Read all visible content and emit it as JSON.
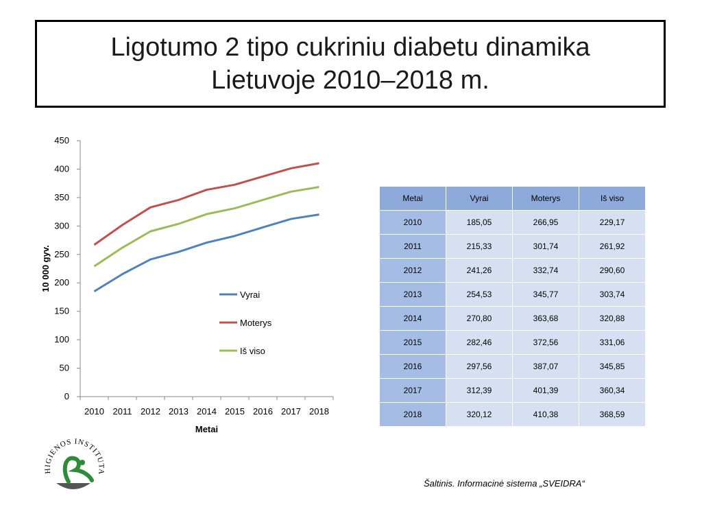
{
  "title": {
    "line1": "Ligotumo 2 tipo cukriniu diabetu dinamika",
    "line2": "Lietuvoje 2010–2018 m."
  },
  "chart_data": {
    "type": "line",
    "x": [
      "2010",
      "2011",
      "2012",
      "2013",
      "2014",
      "2015",
      "2016",
      "2017",
      "2018"
    ],
    "series": [
      {
        "name": "Vyrai",
        "color": "#4f81bd",
        "values": [
          185.05,
          215.33,
          241.26,
          254.53,
          270.8,
          282.46,
          297.56,
          312.39,
          320.12
        ]
      },
      {
        "name": "Moterys",
        "color": "#c0504d",
        "values": [
          266.95,
          301.74,
          332.74,
          345.77,
          363.68,
          372.56,
          387.07,
          401.39,
          410.38
        ]
      },
      {
        "name": "Iš viso",
        "color": "#9bbb59",
        "values": [
          229.17,
          261.92,
          290.6,
          303.74,
          320.88,
          331.06,
          345.85,
          360.34,
          368.59
        ]
      }
    ],
    "xlabel": "Metai",
    "ylabel": "10 000 gyv.",
    "ylim": [
      0,
      450
    ],
    "yticks": [
      "0",
      "50",
      "100",
      "150",
      "200",
      "250",
      "300",
      "350",
      "400",
      "450"
    ],
    "grid": false,
    "legend": "inside-right"
  },
  "table": {
    "headers": [
      "Metai",
      "Vyrai",
      "Moterys",
      "Iš viso"
    ],
    "rows": [
      [
        "2010",
        "185,05",
        "266,95",
        "229,17"
      ],
      [
        "2011",
        "215,33",
        "301,74",
        "261,92"
      ],
      [
        "2012",
        "241,26",
        "332,74",
        "290,60"
      ],
      [
        "2013",
        "254,53",
        "345,77",
        "303,74"
      ],
      [
        "2014",
        "270,80",
        "363,68",
        "320,88"
      ],
      [
        "2015",
        "282,46",
        "372,56",
        "331,06"
      ],
      [
        "2016",
        "297,56",
        "387,07",
        "345,85"
      ],
      [
        "2017",
        "312,39",
        "401,39",
        "360,34"
      ],
      [
        "2018",
        "320,12",
        "410,38",
        "368,59"
      ]
    ]
  },
  "source": "Šaltinis. Informacinė sistema „SVEIDRA“",
  "logo_text": "HIGIENOS INSTITUTAS"
}
